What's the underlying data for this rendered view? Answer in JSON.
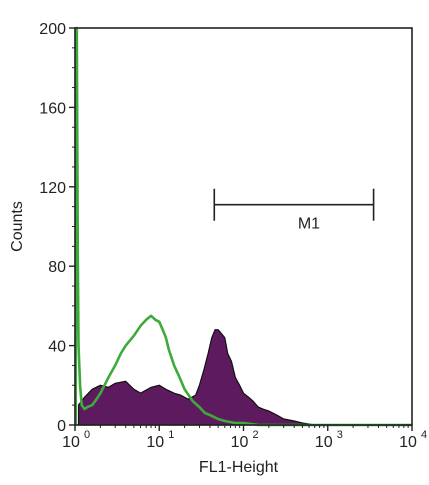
{
  "chart_data": {
    "type": "area",
    "title": "",
    "xlabel": "FL1-Height",
    "ylabel": "Counts",
    "x_scale": "log",
    "xlim": [
      1,
      10000
    ],
    "ylim": [
      0,
      200
    ],
    "x_ticks": [
      {
        "value": 1,
        "base": "10",
        "exp": "0"
      },
      {
        "value": 10,
        "base": "10",
        "exp": "1"
      },
      {
        "value": 100,
        "base": "10",
        "exp": "2"
      },
      {
        "value": 1000,
        "base": "10",
        "exp": "3"
      },
      {
        "value": 10000,
        "base": "10",
        "exp": "4"
      }
    ],
    "y_ticks": [
      0,
      40,
      80,
      120,
      160,
      200
    ],
    "grid": false,
    "marker": {
      "label": "M1",
      "x_start": 45,
      "x_end": 3500,
      "y": 115
    },
    "colors": {
      "filled_histogram": "#5e1a5e",
      "filled_outline": "#111111",
      "control_line": "#3cab3c",
      "axis": "#222222"
    },
    "series": [
      {
        "style": "filled",
        "x": [
          1.1,
          1.3,
          1.6,
          2,
          2.5,
          3,
          4,
          5,
          6,
          8,
          10,
          12,
          15,
          18,
          22,
          27,
          30,
          34,
          38,
          42,
          46,
          50,
          55,
          60,
          65,
          72,
          80,
          90,
          100,
          115,
          130,
          150,
          170,
          200,
          250,
          300,
          400,
          500,
          700,
          1000,
          2000,
          5000,
          10000
        ],
        "y": [
          10,
          14,
          18,
          20,
          19,
          21,
          22,
          18,
          16,
          19,
          20,
          18,
          16,
          15,
          13,
          15,
          20,
          28,
          36,
          44,
          48,
          48,
          46,
          44,
          36,
          32,
          24,
          20,
          16,
          14,
          12,
          9,
          8,
          7,
          5,
          3,
          2,
          1,
          0,
          0,
          0,
          0,
          0
        ]
      },
      {
        "style": "line",
        "x": [
          1.02,
          1.05,
          1.08,
          1.1,
          1.15,
          1.2,
          1.3,
          1.4,
          1.6,
          1.8,
          2,
          2.5,
          3,
          3.5,
          4,
          5,
          6,
          7,
          8,
          9,
          10,
          11,
          12,
          13,
          15,
          17,
          20,
          25,
          30,
          35,
          40,
          50,
          60,
          80,
          100,
          150,
          200,
          300,
          500,
          1000,
          2000,
          5000,
          10000
        ],
        "y": [
          200,
          200,
          85,
          40,
          20,
          10,
          8,
          9,
          10,
          13,
          16,
          24,
          30,
          36,
          40,
          45,
          50,
          53,
          55,
          53,
          52,
          48,
          44,
          38,
          30,
          25,
          18,
          12,
          9,
          6,
          5,
          3,
          2,
          1,
          1,
          0,
          0,
          0,
          0,
          0,
          0,
          0,
          0
        ]
      }
    ]
  }
}
